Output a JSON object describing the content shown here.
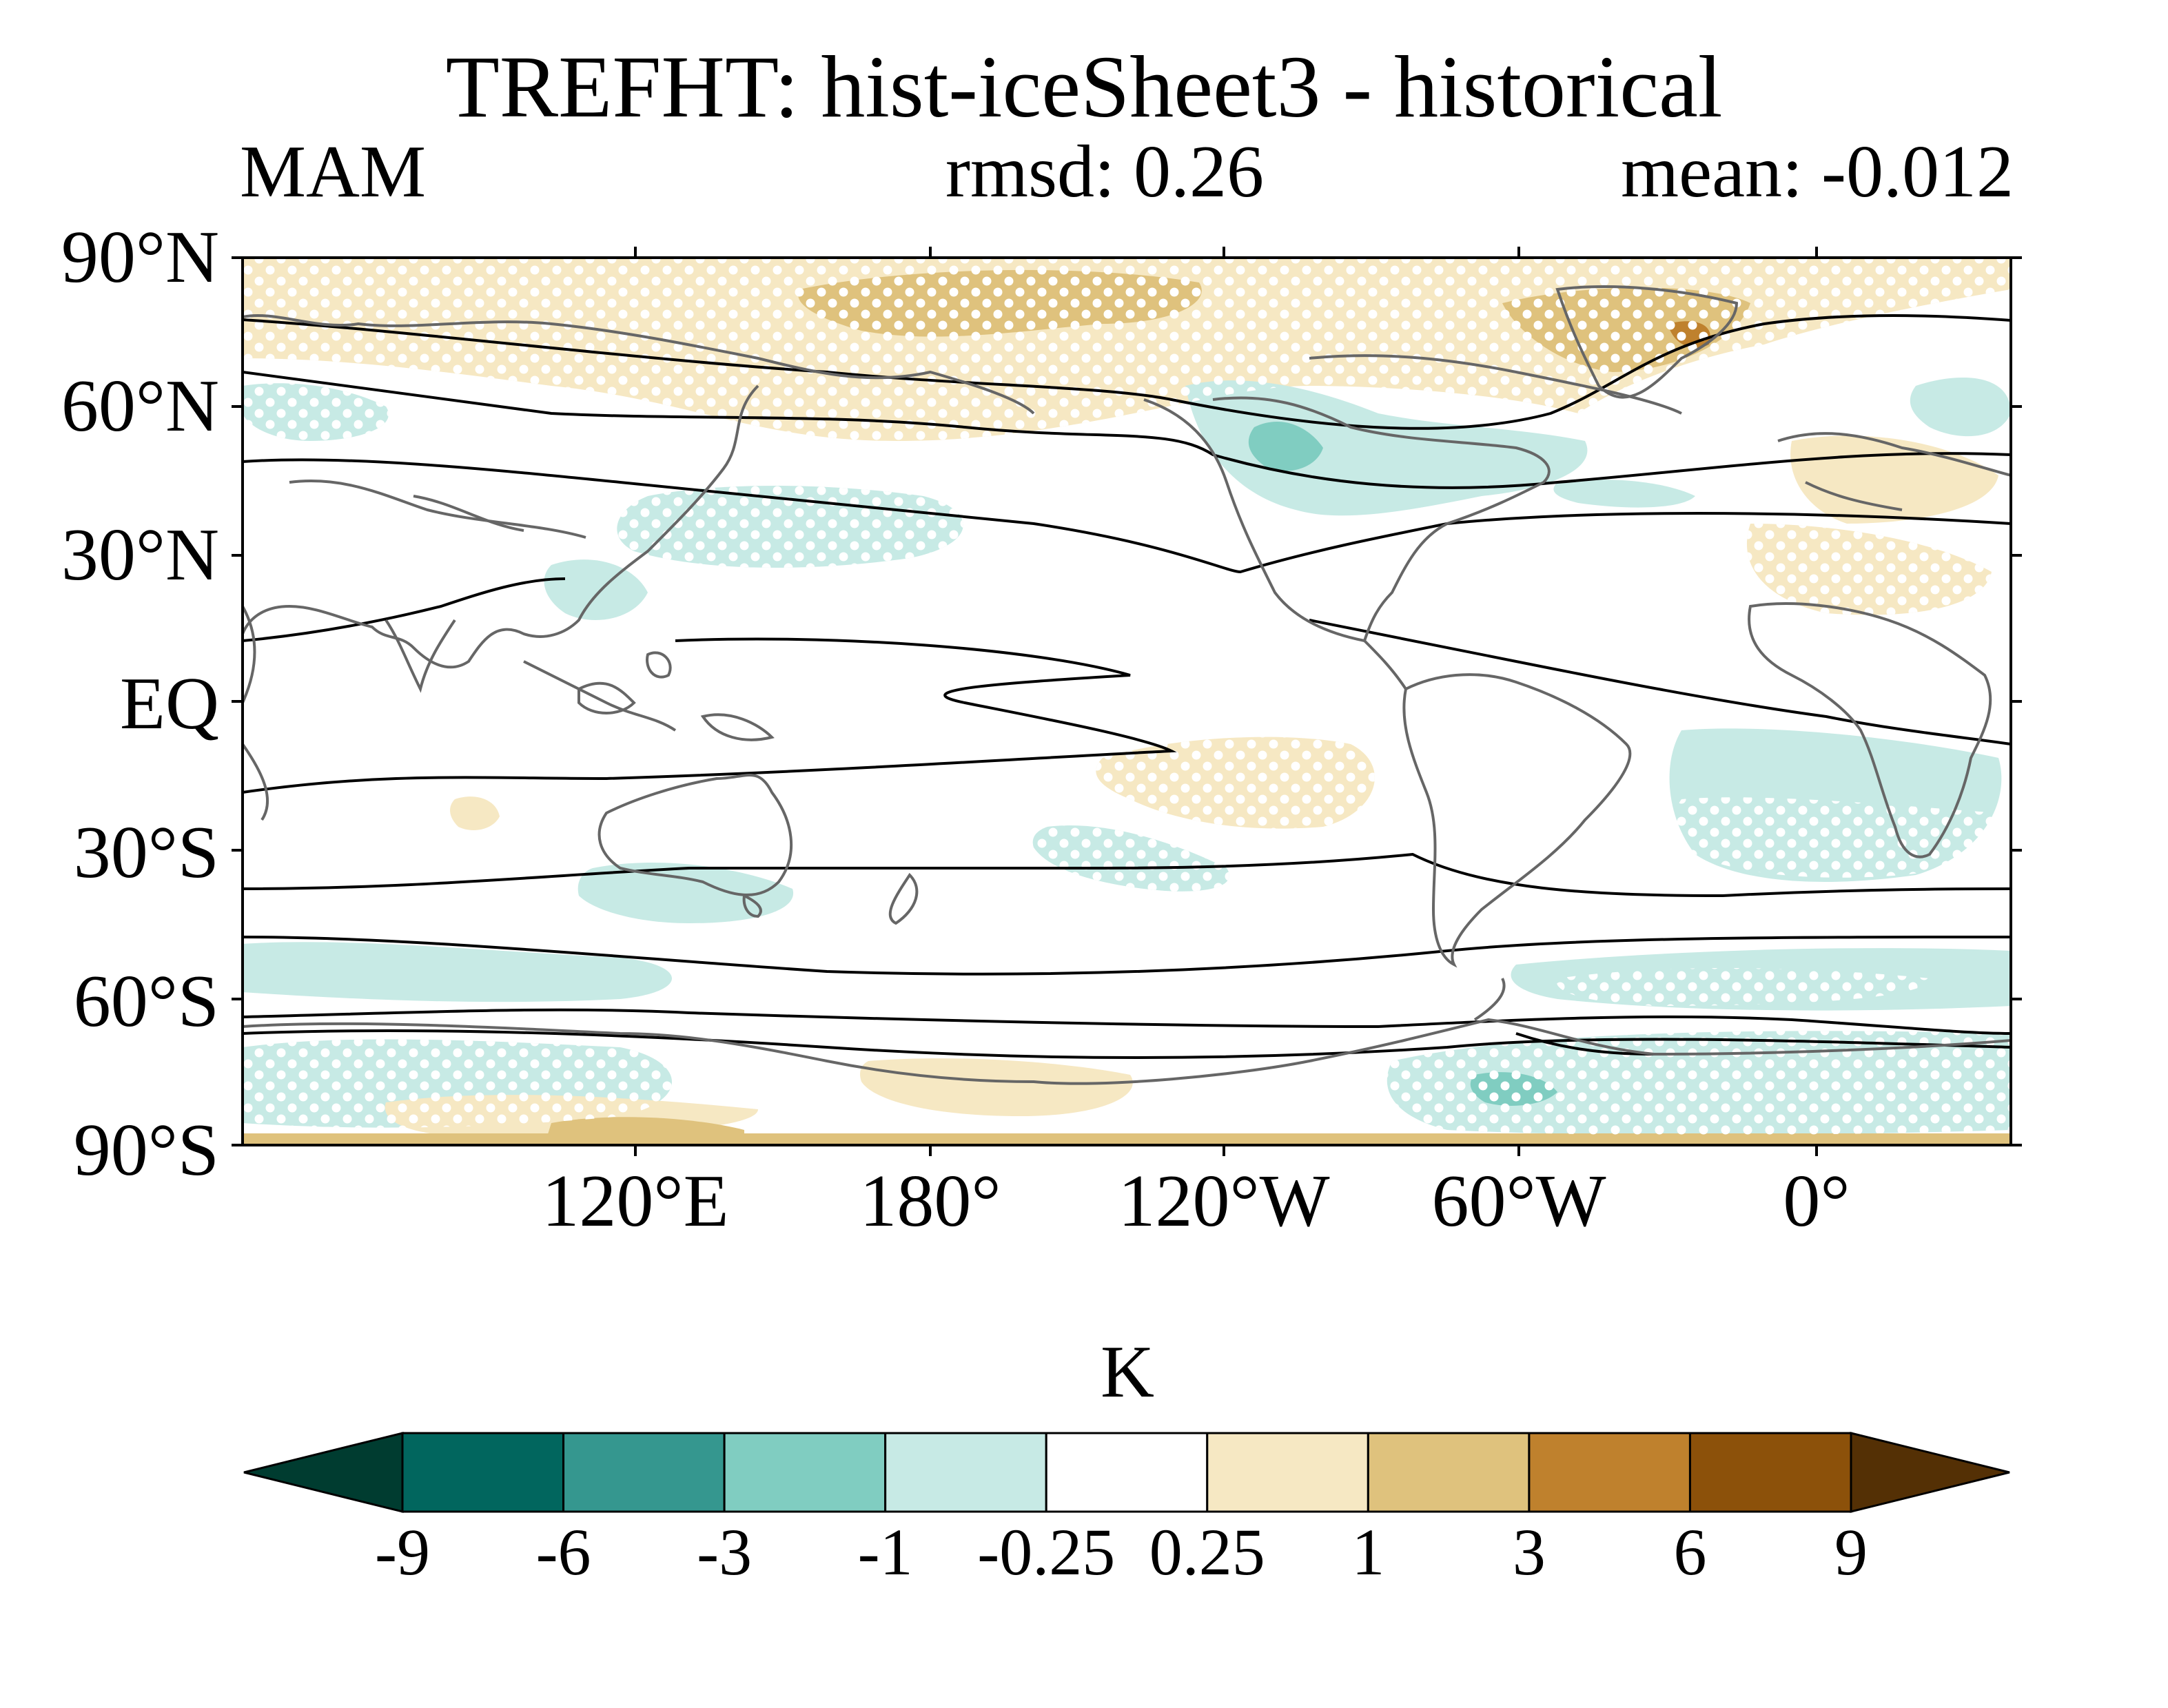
{
  "title": "TREFHT: hist-iceSheet3 - historical",
  "season": "MAM",
  "rmsd_text": "rmsd: 0.26",
  "mean_text": "mean: -0.012",
  "lat_ticks": [
    "90°N",
    "60°N",
    "30°N",
    "EQ",
    "30°S",
    "60°S",
    "90°S"
  ],
  "lon_ticks": [
    "120°E",
    "180°",
    "120°W",
    "60°W",
    "0°"
  ],
  "colorbar": {
    "units": "K",
    "levels": [
      "-9",
      "-6",
      "-3",
      "-1",
      "-0.25",
      "0.25",
      "1",
      "3",
      "6",
      "9"
    ],
    "colors": [
      "#003c30",
      "#01665e",
      "#35978f",
      "#80cdc1",
      "#c7eae5",
      "#ffffff",
      "#f6e8c3",
      "#dfc27d",
      "#bf812d",
      "#8c510a",
      "#543005"
    ]
  },
  "map": {
    "projection": "cylindrical-equidistant",
    "lon_range": [
      40,
      400
    ],
    "lat_range": [
      -90,
      90
    ],
    "land_outline_color": "#666666",
    "contour_color": "#000000",
    "stipple_color": "#ffffff"
  }
}
